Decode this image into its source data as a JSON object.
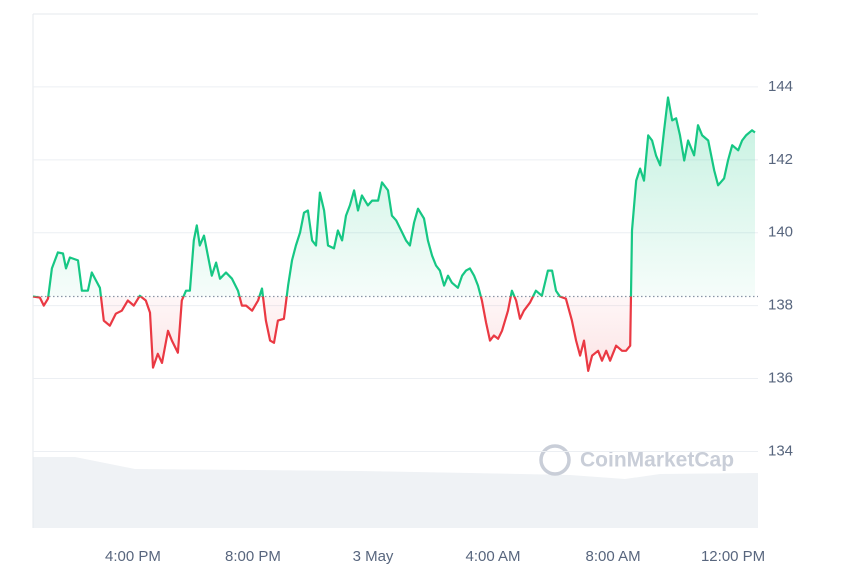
{
  "chart_data": {
    "type": "line",
    "watermark": "CoinMarketCap",
    "xlim": [
      0.67,
      24.83
    ],
    "ylim": [
      131.9,
      146
    ],
    "xticks": [
      {
        "value": 4,
        "label": "4:00 PM"
      },
      {
        "value": 8,
        "label": "8:00 PM"
      },
      {
        "value": 12,
        "label": "3 May"
      },
      {
        "value": 16,
        "label": "4:00 AM"
      },
      {
        "value": 20,
        "label": "8:00 AM"
      },
      {
        "value": 24,
        "label": "12:00 PM"
      }
    ],
    "yticks": [
      134,
      136,
      138,
      140,
      142,
      144
    ],
    "grid": true,
    "baseline": 138.25,
    "up_color": "#16c784",
    "down_color": "#ea3943",
    "series": [
      {
        "x": [
          0.67,
          0.9,
          1.03,
          1.17,
          1.3,
          1.5,
          1.67,
          1.77,
          1.9,
          2.17,
          2.3,
          2.5,
          2.63,
          2.77,
          2.9,
          3.03,
          3.23,
          3.43,
          3.63,
          3.83,
          4.03,
          4.23,
          4.43,
          4.57,
          4.67,
          4.83,
          4.97,
          5.17,
          5.3,
          5.5,
          5.63,
          5.77,
          5.9,
          6.03,
          6.13,
          6.23,
          6.37,
          6.5,
          6.63,
          6.77,
          6.9,
          7.1,
          7.3,
          7.5,
          7.63,
          7.77,
          7.97,
          8.17,
          8.3,
          8.43,
          8.57,
          8.7,
          8.83,
          9.03,
          9.17,
          9.3,
          9.43,
          9.57,
          9.7,
          9.83,
          9.97,
          10.1,
          10.23,
          10.37,
          10.5,
          10.7,
          10.83,
          10.97,
          11.1,
          11.23,
          11.37,
          11.5,
          11.63,
          11.83,
          11.97,
          12.17,
          12.3,
          12.5,
          12.63,
          12.77,
          12.97,
          13.1,
          13.23,
          13.37,
          13.5,
          13.7,
          13.83,
          13.97,
          14.1,
          14.23,
          14.37,
          14.5,
          14.63,
          14.83,
          14.97,
          15.1,
          15.23,
          15.37,
          15.5,
          15.63,
          15.77,
          15.9,
          16.03,
          16.17,
          16.3,
          16.5,
          16.63,
          16.77,
          16.9,
          17.03,
          17.23,
          17.43,
          17.63,
          17.83,
          17.97,
          18.1,
          18.23,
          18.43,
          18.63,
          18.77,
          18.9,
          19.03,
          19.17,
          19.3,
          19.5,
          19.63,
          19.77,
          19.9,
          20.1,
          20.3,
          20.43,
          20.57,
          20.63,
          20.77,
          20.9,
          21.03,
          21.17,
          21.3,
          21.43,
          21.57,
          21.7,
          21.83,
          21.97,
          22.1,
          22.23,
          22.37,
          22.5,
          22.7,
          22.83,
          22.97,
          23.17,
          23.37,
          23.5,
          23.7,
          23.83,
          23.97,
          24.17,
          24.3,
          24.43,
          24.63,
          24.73
        ],
        "values": [
          138.25,
          138.22,
          138.0,
          138.19,
          139.02,
          139.46,
          139.43,
          139.02,
          139.32,
          139.24,
          138.41,
          138.41,
          138.91,
          138.69,
          138.49,
          137.59,
          137.45,
          137.78,
          137.86,
          138.14,
          138.0,
          138.27,
          138.14,
          137.81,
          136.3,
          136.68,
          136.43,
          137.31,
          137.04,
          136.71,
          138.14,
          138.41,
          138.41,
          139.79,
          140.2,
          139.65,
          139.92,
          139.37,
          138.82,
          139.18,
          138.74,
          138.91,
          138.74,
          138.41,
          138.0,
          138.0,
          137.86,
          138.14,
          138.47,
          137.59,
          137.04,
          136.98,
          137.59,
          137.64,
          138.55,
          139.24,
          139.65,
          140.01,
          140.55,
          140.61,
          139.79,
          139.65,
          141.1,
          140.61,
          139.65,
          139.57,
          140.06,
          139.79,
          140.47,
          140.75,
          141.16,
          140.61,
          141.02,
          140.75,
          140.88,
          140.88,
          141.38,
          141.16,
          140.47,
          140.34,
          140.01,
          139.79,
          139.65,
          140.28,
          140.66,
          140.39,
          139.79,
          139.37,
          139.1,
          138.96,
          138.55,
          138.82,
          138.63,
          138.49,
          138.82,
          138.96,
          139.02,
          138.82,
          138.55,
          138.14,
          137.53,
          137.04,
          137.18,
          137.09,
          137.31,
          137.86,
          138.41,
          138.14,
          137.64,
          137.86,
          138.08,
          138.41,
          138.27,
          138.96,
          138.96,
          138.41,
          138.25,
          138.19,
          137.59,
          137.04,
          136.63,
          137.04,
          136.21,
          136.63,
          136.76,
          136.49,
          136.76,
          136.49,
          136.9,
          136.76,
          136.76,
          136.9,
          140.06,
          141.43,
          141.76,
          141.43,
          142.67,
          142.53,
          142.12,
          141.85,
          142.81,
          143.71,
          143.08,
          143.14,
          142.67,
          141.98,
          142.53,
          142.12,
          142.95,
          142.67,
          142.53,
          141.71,
          141.3,
          141.49,
          141.98,
          142.4,
          142.26,
          142.53,
          142.67,
          142.81,
          142.75
        ]
      }
    ]
  }
}
